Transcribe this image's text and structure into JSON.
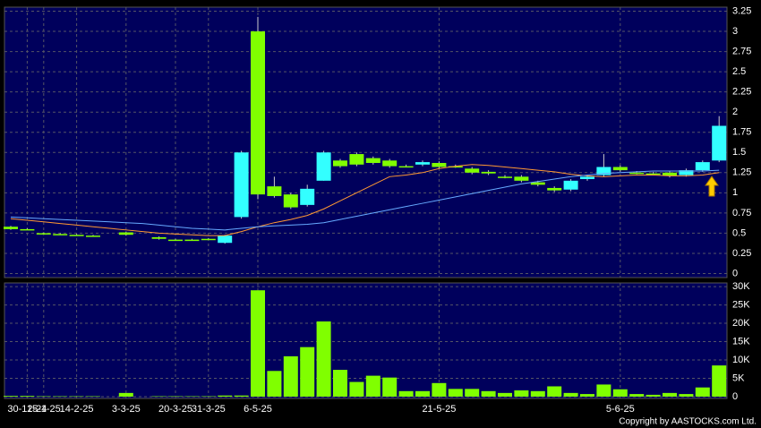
{
  "chart_data": {
    "type": "candlestick",
    "categories": [
      null,
      "30-12-24",
      "15-1-25",
      null,
      "14-2-25",
      null,
      null,
      "3-3-25",
      null,
      null,
      "20-3-25",
      null,
      "31-3-25",
      null,
      null,
      "6-5-25",
      null,
      null,
      null,
      null,
      null,
      null,
      null,
      null,
      null,
      null,
      "21-5-25",
      null,
      null,
      null,
      null,
      null,
      null,
      null,
      null,
      null,
      null,
      "5-6-25",
      null,
      null,
      null,
      null,
      null,
      null
    ],
    "open": [
      0.58,
      0.55,
      0.5,
      0.49,
      0.48,
      0.47,
      null,
      0.51,
      null,
      0.45,
      0.42,
      0.42,
      0.43,
      0.38,
      0.7,
      3.0,
      1.08,
      0.98,
      0.85,
      1.15,
      1.4,
      1.48,
      1.43,
      1.4,
      1.33,
      1.35,
      1.37,
      1.33,
      1.3,
      1.26,
      1.2,
      1.2,
      1.13,
      1.06,
      1.04,
      1.17,
      1.22,
      1.32,
      1.25,
      1.24,
      1.25,
      1.22,
      1.28,
      1.4
    ],
    "high": [
      0.59,
      0.56,
      0.51,
      0.5,
      0.49,
      0.48,
      null,
      0.52,
      null,
      0.46,
      0.43,
      0.43,
      0.44,
      0.48,
      1.52,
      3.18,
      1.2,
      1.0,
      1.1,
      1.52,
      1.42,
      1.5,
      1.45,
      1.42,
      1.35,
      1.4,
      1.39,
      1.35,
      1.32,
      1.28,
      1.22,
      1.22,
      1.15,
      1.08,
      1.17,
      1.22,
      1.48,
      1.34,
      1.27,
      1.26,
      1.27,
      1.3,
      1.4,
      1.95
    ],
    "low": [
      0.54,
      0.54,
      0.49,
      0.48,
      0.47,
      0.46,
      null,
      0.47,
      null,
      0.42,
      0.41,
      0.41,
      0.42,
      0.37,
      0.68,
      0.92,
      0.94,
      0.8,
      0.83,
      1.15,
      1.31,
      1.33,
      1.35,
      1.31,
      1.32,
      1.33,
      1.3,
      1.31,
      1.23,
      1.22,
      1.18,
      1.13,
      1.08,
      1.01,
      1.02,
      1.15,
      1.2,
      1.26,
      1.23,
      1.22,
      1.19,
      1.2,
      1.26,
      1.38
    ],
    "close": [
      0.55,
      0.55,
      0.5,
      0.49,
      0.48,
      0.47,
      null,
      0.48,
      null,
      0.43,
      0.42,
      0.42,
      0.43,
      0.47,
      1.5,
      0.98,
      0.96,
      0.82,
      1.05,
      1.5,
      1.33,
      1.35,
      1.37,
      1.33,
      1.33,
      1.38,
      1.32,
      1.33,
      1.25,
      1.24,
      1.2,
      1.15,
      1.1,
      1.03,
      1.15,
      1.2,
      1.32,
      1.28,
      1.25,
      1.24,
      1.21,
      1.28,
      1.38,
      1.83
    ],
    "up_color": "#33ffff",
    "down_color": "#80ff00",
    "lines": [
      {
        "color": "#ff9933",
        "values": [
          0.68,
          0.66,
          0.64,
          0.62,
          0.6,
          0.58,
          0.56,
          0.54,
          0.52,
          0.5,
          0.49,
          0.48,
          0.47,
          0.47,
          0.52,
          0.58,
          0.63,
          0.67,
          0.72,
          0.8,
          0.9,
          1.0,
          1.1,
          1.2,
          1.22,
          1.25,
          1.3,
          1.33,
          1.35,
          1.34,
          1.32,
          1.3,
          1.28,
          1.26,
          1.23,
          1.21,
          1.2,
          1.21,
          1.22,
          1.22,
          1.21,
          1.21,
          1.22,
          1.25
        ]
      },
      {
        "color": "#66aaff",
        "values": [
          0.7,
          0.69,
          0.68,
          0.67,
          0.66,
          0.65,
          0.64,
          0.63,
          0.62,
          0.6,
          0.58,
          0.56,
          0.55,
          0.54,
          0.56,
          0.58,
          0.59,
          0.6,
          0.61,
          0.63,
          0.67,
          0.71,
          0.75,
          0.79,
          0.83,
          0.87,
          0.91,
          0.95,
          0.99,
          1.03,
          1.07,
          1.11,
          1.14,
          1.17,
          1.2,
          1.22,
          1.24,
          1.25,
          1.26,
          1.27,
          1.27,
          1.27,
          1.27,
          1.28
        ]
      }
    ],
    "ylim": [
      -0.05,
      3.3
    ],
    "yticks": [
      0,
      0.25,
      0.5,
      0.75,
      1,
      1.25,
      1.5,
      1.75,
      2,
      2.25,
      2.5,
      2.75,
      3,
      3.25
    ],
    "volume": [
      200,
      200,
      100,
      100,
      100,
      100,
      null,
      1000,
      null,
      100,
      100,
      100,
      100,
      300,
      300,
      29000,
      7000,
      11000,
      13500,
      20500,
      7300,
      4000,
      5700,
      5200,
      1500,
      1500,
      3700,
      2100,
      2100,
      1500,
      1000,
      1700,
      1500,
      2800,
      1000,
      700,
      3300,
      2000,
      700,
      500,
      1000,
      700,
      2500,
      8500
    ],
    "volume_color": "#80ff00",
    "y2lim": [
      -500,
      31000
    ],
    "y2ticks": [
      0,
      {
        "value": 5000,
        "label": "5K"
      },
      {
        "value": 10000,
        "label": "10K"
      },
      {
        "value": 15000,
        "label": "15K"
      },
      {
        "value": 20000,
        "label": "20K"
      },
      {
        "value": 25000,
        "label": "25K"
      },
      {
        "value": 30000,
        "label": "30K"
      }
    ],
    "grid": true,
    "copyright": "Copyright by AASTOCKS.com Ltd."
  }
}
